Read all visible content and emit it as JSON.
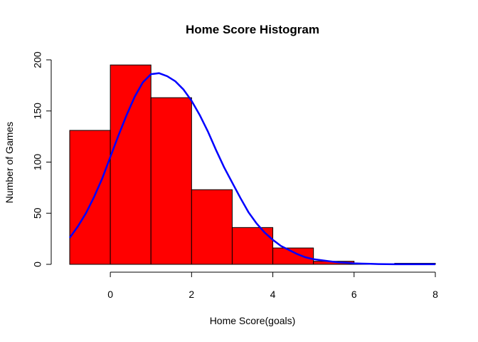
{
  "chart_data": {
    "type": "bar",
    "title": "Home Score Histogram",
    "xlabel": "Home Score(goals)",
    "ylabel": "Number of Games",
    "bins": [
      {
        "x0": -1,
        "x1": 0,
        "count": 131
      },
      {
        "x0": 0,
        "x1": 1,
        "count": 195
      },
      {
        "x0": 1,
        "x1": 2,
        "count": 163
      },
      {
        "x0": 2,
        "x1": 3,
        "count": 73
      },
      {
        "x0": 3,
        "x1": 4,
        "count": 36
      },
      {
        "x0": 4,
        "x1": 5,
        "count": 16
      },
      {
        "x0": 5,
        "x1": 6,
        "count": 3
      },
      {
        "x0": 6,
        "x1": 7,
        "count": 0
      },
      {
        "x0": 7,
        "x1": 8,
        "count": 1
      }
    ],
    "curve": {
      "x": [
        -1,
        -0.8,
        -0.6,
        -0.4,
        -0.2,
        0,
        0.2,
        0.4,
        0.6,
        0.8,
        1,
        1.2,
        1.4,
        1.6,
        1.8,
        2,
        2.2,
        2.4,
        2.6,
        2.8,
        3,
        3.2,
        3.4,
        3.6,
        3.8,
        4,
        4.2,
        4.4,
        4.6,
        4.8,
        5,
        5.2,
        5.4,
        5.6,
        5.8,
        6,
        6.2,
        6.4,
        6.6,
        6.8,
        7,
        7.2,
        7.4,
        7.6,
        7.8,
        8
      ],
      "y": [
        26,
        37,
        50,
        66,
        84,
        105,
        126,
        146,
        164,
        178,
        186,
        187,
        184,
        179,
        171,
        160,
        146,
        130,
        112,
        95,
        80,
        65,
        51,
        40,
        31,
        24,
        18,
        14,
        10,
        7,
        5,
        4,
        3,
        2,
        1.5,
        1,
        0.7,
        0.5,
        0.3,
        0.2,
        0.1,
        0.1,
        0.1,
        0.1,
        0.1,
        0.1
      ]
    },
    "xlim": [
      -1,
      8
    ],
    "ylim": [
      0,
      200
    ],
    "x_ticks": [
      0,
      2,
      4,
      6,
      8
    ],
    "y_ticks": [
      0,
      50,
      100,
      150,
      200
    ],
    "colors": {
      "bar_fill": "#ff0000",
      "curve": "#0000ff"
    },
    "grid": false,
    "legend": "none"
  }
}
